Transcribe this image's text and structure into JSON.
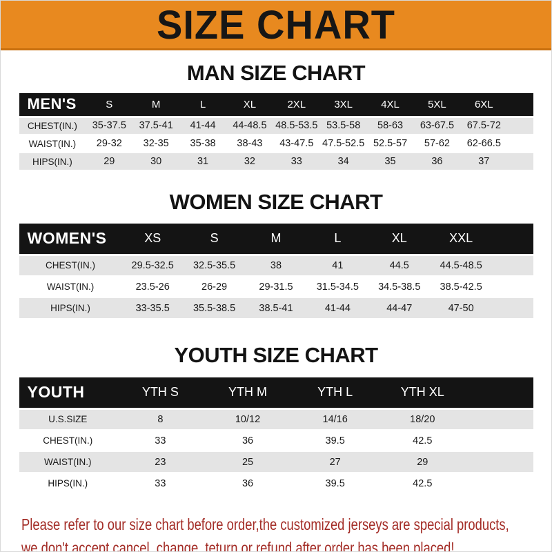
{
  "banner": {
    "title": "SIZE CHART"
  },
  "colors": {
    "banner_bg": "#E8891F",
    "banner_border": "#C9700E",
    "header_bar": "#141414",
    "row_alt": "#E4E4E4",
    "footer_text": "#A32C26"
  },
  "sections": [
    {
      "title": "MAN SIZE CHART",
      "header_label": "MEN'S",
      "columns": [
        "S",
        "M",
        "L",
        "XL",
        "2XL",
        "3XL",
        "4XL",
        "5XL",
        "6XL"
      ],
      "rows": [
        {
          "label": "CHEST(IN.)",
          "values": [
            "35-37.5",
            "37.5-41",
            "41-44",
            "44-48.5",
            "48.5-53.5",
            "53.5-58",
            "58-63",
            "63-67.5",
            "67.5-72"
          ]
        },
        {
          "label": "WAIST(IN.)",
          "values": [
            "29-32",
            "32-35",
            "35-38",
            "38-43",
            "43-47.5",
            "47.5-52.5",
            "52.5-57",
            "57-62",
            "62-66.5"
          ]
        },
        {
          "label": "HIPS(IN.)",
          "values": [
            "29",
            "30",
            "31",
            "32",
            "33",
            "34",
            "35",
            "36",
            "37"
          ]
        }
      ]
    },
    {
      "title": "WOMEN SIZE CHART",
      "header_label": "WOMEN'S",
      "columns": [
        "XS",
        "S",
        "M",
        "L",
        "XL",
        "XXL"
      ],
      "rows": [
        {
          "label": "CHEST(IN.)",
          "values": [
            "29.5-32.5",
            "32.5-35.5",
            "38",
            "41",
            "44.5",
            "44.5-48.5"
          ]
        },
        {
          "label": "WAIST(IN.)",
          "values": [
            "23.5-26",
            "26-29",
            "29-31.5",
            "31.5-34.5",
            "34.5-38.5",
            "38.5-42.5"
          ]
        },
        {
          "label": "HIPS(IN.)",
          "values": [
            "33-35.5",
            "35.5-38.5",
            "38.5-41",
            "41-44",
            "44-47",
            "47-50"
          ]
        }
      ]
    },
    {
      "title": "YOUTH SIZE CHART",
      "header_label": "YOUTH",
      "columns": [
        "YTH S",
        "YTH M",
        "YTH L",
        "YTH XL"
      ],
      "rows": [
        {
          "label": "U.S.SIZE",
          "values": [
            "8",
            "10/12",
            "14/16",
            "18/20"
          ]
        },
        {
          "label": "CHEST(IN.)",
          "values": [
            "33",
            "36",
            "39.5",
            "42.5"
          ]
        },
        {
          "label": "WAIST(IN.)",
          "values": [
            "23",
            "25",
            "27",
            "29"
          ]
        },
        {
          "label": "HIPS(IN.)",
          "values": [
            "33",
            "36",
            "39.5",
            "42.5"
          ]
        }
      ]
    }
  ],
  "footer": {
    "line1": "Please refer to our size chart before order,the customized jerseys are special products,",
    "line2": "we don't accept cancel, change, teturn or refund after order has been placed!"
  }
}
